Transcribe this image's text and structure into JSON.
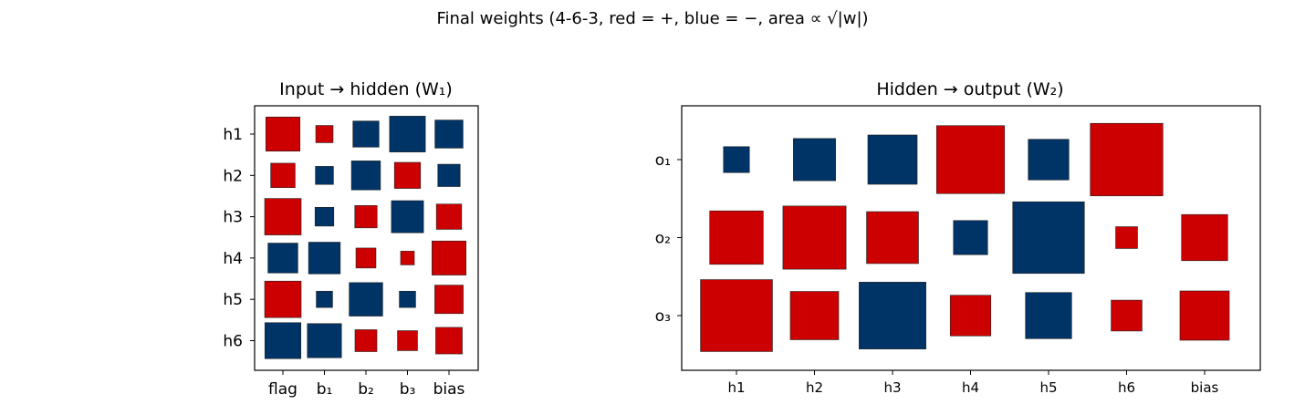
{
  "figure": {
    "suptitle": "Final weights  (4-6-3,  red = +, blue = −,  area ∝ √|w|)"
  },
  "colors": {
    "positive": "#cc0000",
    "negative": "#003366",
    "edge": "#222222"
  },
  "chart_data": [
    {
      "type": "hinton",
      "title": "Input → hidden  (W₁)",
      "columns": [
        "flag",
        "b₁",
        "b₂",
        "b₃",
        "bias"
      ],
      "rows": [
        "h1",
        "h2",
        "h3",
        "h4",
        "h5",
        "h6"
      ],
      "max_abs": 1.0,
      "weights": [
        [
          0.77,
          0.05,
          -0.26,
          -0.93,
          -0.35
        ],
        [
          0.2,
          -0.06,
          -0.4,
          0.26,
          -0.14
        ],
        [
          1.0,
          -0.07,
          0.14,
          -0.6,
          0.23
        ],
        [
          -0.45,
          -0.57,
          0.09,
          0.02,
          0.76
        ],
        [
          1.0,
          -0.04,
          -0.71,
          -0.04,
          0.37
        ],
        [
          -0.95,
          -0.77,
          0.13,
          0.09,
          0.28
        ]
      ]
    },
    {
      "type": "hinton",
      "title": "Hidden → output  (W₂)",
      "columns": [
        "h1",
        "h2",
        "h3",
        "h4",
        "h5",
        "h6",
        "bias"
      ],
      "rows": [
        "o₁",
        "o₂",
        "o₃"
      ],
      "max_abs": 1.0,
      "weights": [
        [
          -0.01,
          -0.07,
          -0.13,
          0.47,
          -0.06,
          0.61,
          0.0
        ],
        [
          0.18,
          0.35,
          0.16,
          -0.03,
          -0.58,
          0.005,
          0.1
        ],
        [
          0.59,
          0.12,
          -0.44,
          0.06,
          -0.1,
          0.02,
          0.13
        ]
      ]
    }
  ]
}
